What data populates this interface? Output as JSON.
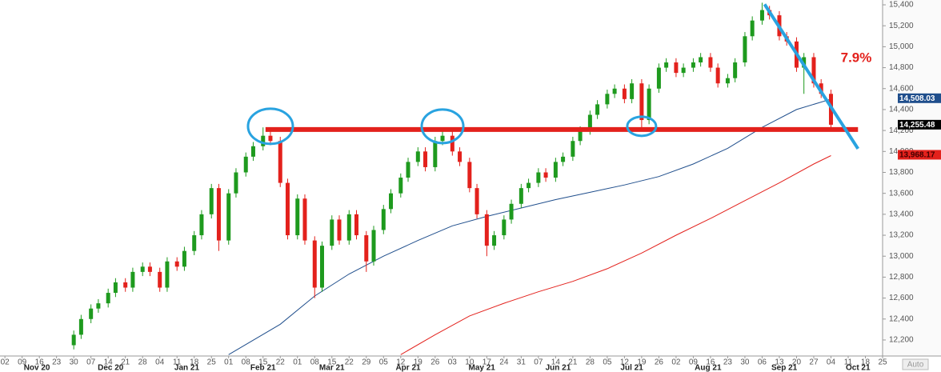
{
  "chart_data": {
    "type": "candlestick",
    "x": [
      "2020-11-30",
      "2020-12-03",
      "2020-12-07",
      "2020-12-10",
      "2020-12-14",
      "2020-12-17",
      "2020-12-21",
      "2020-12-24",
      "2020-12-28",
      "2020-12-31",
      "2021-01-04",
      "2021-01-07",
      "2021-01-11",
      "2021-01-14",
      "2021-01-18",
      "2021-01-21",
      "2021-01-25",
      "2021-01-28",
      "2021-02-01",
      "2021-02-04",
      "2021-02-08",
      "2021-02-11",
      "2021-02-15",
      "2021-02-18",
      "2021-02-22",
      "2021-02-25",
      "2021-03-01",
      "2021-03-04",
      "2021-03-08",
      "2021-03-11",
      "2021-03-15",
      "2021-03-18",
      "2021-03-22",
      "2021-03-25",
      "2021-03-29",
      "2021-04-01",
      "2021-04-05",
      "2021-04-08",
      "2021-04-12",
      "2021-04-15",
      "2021-04-19",
      "2021-04-22",
      "2021-04-26",
      "2021-04-29",
      "2021-05-03",
      "2021-05-06",
      "2021-05-10",
      "2021-05-13",
      "2021-05-17",
      "2021-05-20",
      "2021-05-24",
      "2021-05-27",
      "2021-05-31",
      "2021-06-03",
      "2021-06-07",
      "2021-06-10",
      "2021-06-14",
      "2021-06-17",
      "2021-06-21",
      "2021-06-24",
      "2021-06-28",
      "2021-07-01",
      "2021-07-05",
      "2021-07-08",
      "2021-07-12",
      "2021-07-15",
      "2021-07-19",
      "2021-07-22",
      "2021-07-26",
      "2021-07-29",
      "2021-08-02",
      "2021-08-05",
      "2021-08-09",
      "2021-08-12",
      "2021-08-16",
      "2021-08-19",
      "2021-08-23",
      "2021-08-26",
      "2021-08-30",
      "2021-09-02",
      "2021-09-06",
      "2021-09-09",
      "2021-09-13",
      "2021-09-16",
      "2021-09-20",
      "2021-09-23",
      "2021-09-27",
      "2021-09-30",
      "2021-10-04"
    ],
    "open": [
      12150,
      12250,
      12400,
      12500,
      12550,
      12650,
      12750,
      12700,
      12850,
      12900,
      12850,
      12700,
      12950,
      12900,
      13050,
      13200,
      13400,
      13650,
      13150,
      13600,
      13800,
      13950,
      14050,
      14150,
      14100,
      13700,
      13200,
      13550,
      13150,
      12700,
      13100,
      13350,
      13150,
      13400,
      13200,
      12950,
      13250,
      13450,
      13600,
      13750,
      13900,
      14000,
      13850,
      14100,
      14150,
      14000,
      13900,
      13650,
      13400,
      13100,
      13200,
      13350,
      13500,
      13650,
      13700,
      13800,
      13750,
      13900,
      13950,
      14100,
      14200,
      14350,
      14450,
      14550,
      14600,
      14500,
      14650,
      14300,
      14600,
      14800,
      14850,
      14750,
      14800,
      14850,
      14900,
      14800,
      14650,
      14700,
      14850,
      15100,
      15250,
      15350,
      15300,
      15100,
      15050,
      14800,
      14900,
      14650,
      14550
    ],
    "high": [
      12290,
      12440,
      12540,
      12590,
      12690,
      12790,
      12790,
      12890,
      12940,
      12940,
      12890,
      12990,
      12990,
      13090,
      13240,
      13440,
      13690,
      13690,
      13640,
      13840,
      13990,
      14090,
      14230,
      14190,
      14140,
      13740,
      13590,
      13590,
      13190,
      13140,
      13390,
      13390,
      13440,
      13440,
      13240,
      13290,
      13490,
      13640,
      13790,
      13940,
      14040,
      14040,
      14140,
      14230,
      14190,
      14040,
      13940,
      13690,
      13440,
      13240,
      13390,
      13540,
      13690,
      13740,
      13840,
      13840,
      13940,
      13990,
      14140,
      14240,
      14390,
      14490,
      14590,
      14640,
      14640,
      14690,
      14690,
      14640,
      14840,
      14890,
      14890,
      14840,
      14890,
      14940,
      14940,
      14840,
      14740,
      14890,
      15140,
      15290,
      15420,
      15390,
      15340,
      15140,
      15090,
      14940,
      14940,
      14690,
      14590
    ],
    "low": [
      12110,
      12210,
      12360,
      12460,
      12510,
      12610,
      12660,
      12660,
      12810,
      12810,
      12660,
      12660,
      12860,
      12860,
      13010,
      13160,
      13360,
      13050,
      13110,
      13560,
      13760,
      13910,
      14010,
      14060,
      13660,
      13160,
      13160,
      13110,
      12600,
      12660,
      13060,
      13110,
      13110,
      13160,
      12850,
      12910,
      13210,
      13410,
      13560,
      13710,
      13860,
      13810,
      13810,
      14060,
      13960,
      13860,
      13610,
      13360,
      13000,
      13060,
      13160,
      13310,
      13460,
      13610,
      13660,
      13710,
      13710,
      13860,
      13910,
      14060,
      14160,
      14310,
      14410,
      14510,
      14460,
      14460,
      14215,
      14260,
      14560,
      14760,
      14710,
      14710,
      14760,
      14810,
      14760,
      14610,
      14610,
      14660,
      14810,
      15060,
      15210,
      15260,
      15060,
      15010,
      14760,
      14550,
      14610,
      14510,
      14215
    ],
    "close": [
      12250,
      12400,
      12500,
      12550,
      12650,
      12750,
      12700,
      12850,
      12900,
      12850,
      12700,
      12950,
      12900,
      13050,
      13200,
      13400,
      13650,
      13150,
      13600,
      13800,
      13950,
      14050,
      14150,
      14100,
      13700,
      13200,
      13550,
      13150,
      12700,
      13100,
      13350,
      13150,
      13400,
      13200,
      12950,
      13250,
      13450,
      13600,
      13750,
      13900,
      14000,
      13850,
      14100,
      14150,
      14000,
      13900,
      13650,
      13400,
      13100,
      13200,
      13350,
      13500,
      13650,
      13700,
      13800,
      13750,
      13900,
      13950,
      14100,
      14200,
      14350,
      14450,
      14550,
      14600,
      14500,
      14650,
      14300,
      14600,
      14800,
      14850,
      14750,
      14800,
      14850,
      14900,
      14800,
      14650,
      14700,
      14850,
      15100,
      15250,
      15350,
      15300,
      15100,
      15050,
      14800,
      14900,
      14650,
      14550,
      14255
    ],
    "up_color": "#1e9a1e",
    "down_color": "#e3211c",
    "xlim": [
      "2020-10-31",
      "2021-10-25"
    ],
    "ylim": [
      12047,
      15446
    ],
    "yticks": [
      {
        "value": 12200,
        "label": "12,200"
      },
      {
        "value": 12400,
        "label": "12,400"
      },
      {
        "value": 12600,
        "label": "12,600"
      },
      {
        "value": 12800,
        "label": "12,800"
      },
      {
        "value": 13000,
        "label": "13,000"
      },
      {
        "value": 13200,
        "label": "13,200"
      },
      {
        "value": 13400,
        "label": "13,400"
      },
      {
        "value": 13600,
        "label": "13,600"
      },
      {
        "value": 13800,
        "label": "13,800"
      },
      {
        "value": 14000,
        "label": "14,000"
      },
      {
        "value": 14200,
        "label": "14,200"
      },
      {
        "value": 14400,
        "label": "14,400"
      },
      {
        "value": 14600,
        "label": "14,600"
      },
      {
        "value": 14800,
        "label": "14,800"
      },
      {
        "value": 15000,
        "label": "15,000"
      },
      {
        "value": 15200,
        "label": "15,200"
      },
      {
        "value": 15400,
        "label": "15,400"
      }
    ],
    "xticks": [
      {
        "value": "2020-11-02",
        "label": "02"
      },
      {
        "value": "2020-11-09",
        "label": "09"
      },
      {
        "value": "2020-11-16",
        "label": "16"
      },
      {
        "value": "2020-11-23",
        "label": "23"
      },
      {
        "value": "2020-11-30",
        "label": "30"
      },
      {
        "value": "2020-12-07",
        "label": "07"
      },
      {
        "value": "2020-12-14",
        "label": "14"
      },
      {
        "value": "2020-12-21",
        "label": "21"
      },
      {
        "value": "2020-12-28",
        "label": "28"
      },
      {
        "value": "2021-01-04",
        "label": "04"
      },
      {
        "value": "2021-01-11",
        "label": "11"
      },
      {
        "value": "2021-01-18",
        "label": "18"
      },
      {
        "value": "2021-01-25",
        "label": "25"
      },
      {
        "value": "2021-02-01",
        "label": "01"
      },
      {
        "value": "2021-02-08",
        "label": "08"
      },
      {
        "value": "2021-02-15",
        "label": "15"
      },
      {
        "value": "2021-02-22",
        "label": "22"
      },
      {
        "value": "2021-03-01",
        "label": "01"
      },
      {
        "value": "2021-03-08",
        "label": "08"
      },
      {
        "value": "2021-03-15",
        "label": "15"
      },
      {
        "value": "2021-03-22",
        "label": "22"
      },
      {
        "value": "2021-03-29",
        "label": "29"
      },
      {
        "value": "2021-04-05",
        "label": "05"
      },
      {
        "value": "2021-04-12",
        "label": "12"
      },
      {
        "value": "2021-04-19",
        "label": "19"
      },
      {
        "value": "2021-04-26",
        "label": "26"
      },
      {
        "value": "2021-05-03",
        "label": "03"
      },
      {
        "value": "2021-05-10",
        "label": "10"
      },
      {
        "value": "2021-05-17",
        "label": "17"
      },
      {
        "value": "2021-05-24",
        "label": "24"
      },
      {
        "value": "2021-05-31",
        "label": "31"
      },
      {
        "value": "2021-06-07",
        "label": "07"
      },
      {
        "value": "2021-06-14",
        "label": "14"
      },
      {
        "value": "2021-06-21",
        "label": "21"
      },
      {
        "value": "2021-06-28",
        "label": "28"
      },
      {
        "value": "2021-07-05",
        "label": "05"
      },
      {
        "value": "2021-07-12",
        "label": "12"
      },
      {
        "value": "2021-07-19",
        "label": "19"
      },
      {
        "value": "2021-07-26",
        "label": "26"
      },
      {
        "value": "2021-08-02",
        "label": "02"
      },
      {
        "value": "2021-08-09",
        "label": "09"
      },
      {
        "value": "2021-08-16",
        "label": "16"
      },
      {
        "value": "2021-08-23",
        "label": "23"
      },
      {
        "value": "2021-08-30",
        "label": "30"
      },
      {
        "value": "2021-09-06",
        "label": "06"
      },
      {
        "value": "2021-09-13",
        "label": "13"
      },
      {
        "value": "2021-09-20",
        "label": "20"
      },
      {
        "value": "2021-09-27",
        "label": "27"
      },
      {
        "value": "2021-10-04",
        "label": "04"
      },
      {
        "value": "2021-10-11",
        "label": "11"
      },
      {
        "value": "2021-10-18",
        "label": "18"
      },
      {
        "value": "2021-10-25",
        "label": "25"
      }
    ],
    "month_labels": [
      {
        "value": "2020-11",
        "label": "Nov 20"
      },
      {
        "value": "2020-12",
        "label": "Dec 20"
      },
      {
        "value": "2021-01",
        "label": "Jan 21"
      },
      {
        "value": "2021-02",
        "label": "Feb 21"
      },
      {
        "value": "2021-03",
        "label": "Mar 21"
      },
      {
        "value": "2021-04",
        "label": "Apr 21"
      },
      {
        "value": "2021-05",
        "label": "May 21"
      },
      {
        "value": "2021-06",
        "label": "Jun 21"
      },
      {
        "value": "2021-07",
        "label": "Jul 21"
      },
      {
        "value": "2021-08",
        "label": "Aug 21"
      },
      {
        "value": "2021-09",
        "label": "Sep 21"
      },
      {
        "value": "2021-10",
        "label": "Oct 21"
      }
    ],
    "moving_averages": [
      {
        "color": "#1f4e8c",
        "x": [
          "2021-02-01",
          "2021-02-22",
          "2021-03-08",
          "2021-03-22",
          "2021-04-05",
          "2021-04-19",
          "2021-05-03",
          "2021-05-17",
          "2021-05-31",
          "2021-06-14",
          "2021-06-28",
          "2021-07-12",
          "2021-07-26",
          "2021-08-09",
          "2021-08-23",
          "2021-09-06",
          "2021-09-20",
          "2021-10-04"
        ],
        "values": [
          12060,
          12350,
          12620,
          12830,
          13000,
          13150,
          13290,
          13380,
          13460,
          13540,
          13610,
          13680,
          13760,
          13880,
          14030,
          14230,
          14400,
          14500
        ]
      },
      {
        "color": "#e3211c",
        "x": [
          "2021-04-12",
          "2021-04-26",
          "2021-05-10",
          "2021-05-24",
          "2021-06-07",
          "2021-06-21",
          "2021-07-05",
          "2021-07-19",
          "2021-08-02",
          "2021-08-16",
          "2021-08-30",
          "2021-09-13",
          "2021-09-27",
          "2021-10-04"
        ],
        "values": [
          12060,
          12250,
          12430,
          12550,
          12660,
          12760,
          12880,
          13030,
          13200,
          13360,
          13530,
          13700,
          13880,
          13960
        ]
      }
    ],
    "last_labels": [
      {
        "value": 14508.03,
        "label": "14,508.03",
        "color": "#1f4e8c"
      },
      {
        "value": 14255.48,
        "label": "14,255.48",
        "color": "#000000"
      },
      {
        "value": 13968.17,
        "label": "13,968.17",
        "color": "#e3211c"
      }
    ],
    "support": {
      "level": 14210,
      "from": "2021-02-16",
      "to": "2021-10-15",
      "color": "#e3211c",
      "circles": [
        "2021-02-18",
        "2021-04-29",
        "2021-07-19"
      ]
    },
    "trendline": {
      "color": "#29a3e0",
      "x": [
        "2021-09-07",
        "2021-10-15"
      ],
      "values": [
        15405,
        14026
      ]
    },
    "annotation": "7.9%",
    "button": "Auto"
  }
}
